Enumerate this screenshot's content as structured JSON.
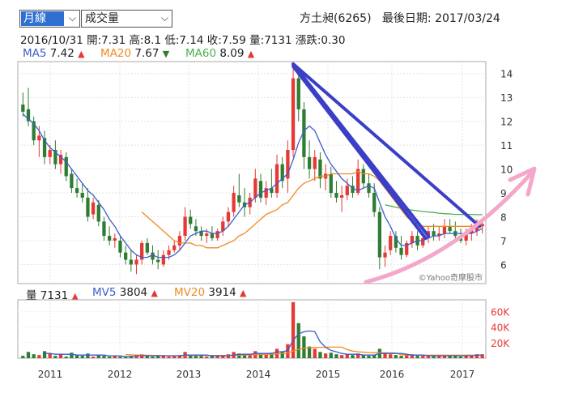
{
  "controls": {
    "period": "月線",
    "indicator": "成交量"
  },
  "stock": {
    "title": "方土昶(6265)",
    "last_date_label": "最後日期: 2017/03/24"
  },
  "info": {
    "date": "2016/10/31",
    "open": "開:7.31",
    "high": "高:8.1",
    "low": "低:7.14",
    "close": "收:7.59",
    "volume": "量:7131",
    "change": "漲跌:0.30"
  },
  "ma": {
    "ma5": {
      "label": "MA5",
      "value": "7.42",
      "dir": "▲"
    },
    "ma20": {
      "label": "MA20",
      "value": "7.67",
      "dir": "▼"
    },
    "ma60": {
      "label": "MA60",
      "value": "8.09",
      "dir": "▲"
    }
  },
  "vol_legend": {
    "vol": {
      "label": "量",
      "value": "7131",
      "dir": "▲"
    },
    "mv5": {
      "label": "MV5",
      "value": "3804",
      "dir": "▲"
    },
    "mv20": {
      "label": "MV20",
      "value": "3914",
      "dir": "▲"
    }
  },
  "watermark": "©Yahoo奇摩股市",
  "colors": {
    "up": "#e53935",
    "down": "#2e7d32",
    "ma5": "#3a5fcd",
    "ma20": "#ef8a23",
    "ma60": "#4caf50",
    "trend": "#3b3fc8",
    "arrow": "#f4a7c8"
  },
  "chart_data": {
    "type": "candlestick",
    "price_ticks": [
      6,
      7,
      8,
      9,
      10,
      11,
      12,
      13,
      14
    ],
    "ylim": [
      5.2,
      14.5
    ],
    "x_labels": [
      "2011",
      "2012",
      "2013",
      "2014",
      "2015",
      "2016",
      "2017"
    ],
    "vol_ticks": [
      "20K",
      "40K",
      "60K"
    ],
    "vol_ylim": [
      0,
      75
    ],
    "candles": [
      [
        12.7,
        13.2,
        12.2,
        12.4
      ],
      [
        12.5,
        13.4,
        11.8,
        12.0
      ],
      [
        12.0,
        12.2,
        11.0,
        11.2
      ],
      [
        11.2,
        11.8,
        10.5,
        11.4
      ],
      [
        11.3,
        11.6,
        10.2,
        10.5
      ],
      [
        10.5,
        11.0,
        10.2,
        10.8
      ],
      [
        10.8,
        11.2,
        10.0,
        10.2
      ],
      [
        10.2,
        10.8,
        9.8,
        10.6
      ],
      [
        10.5,
        10.7,
        9.5,
        9.7
      ],
      [
        9.8,
        10.0,
        9.0,
        9.2
      ],
      [
        9.2,
        9.6,
        8.8,
        9.0
      ],
      [
        9.0,
        9.4,
        8.6,
        8.8
      ],
      [
        8.8,
        9.2,
        7.8,
        8.0
      ],
      [
        8.1,
        8.8,
        7.9,
        8.6
      ],
      [
        8.5,
        8.7,
        7.6,
        7.8
      ],
      [
        7.8,
        8.0,
        7.0,
        7.2
      ],
      [
        7.2,
        7.6,
        6.8,
        7.0
      ],
      [
        7.0,
        7.3,
        6.7,
        7.1
      ],
      [
        7.0,
        7.2,
        6.3,
        6.5
      ],
      [
        6.5,
        6.8,
        6.0,
        6.2
      ],
      [
        6.2,
        6.6,
        5.7,
        6.0
      ],
      [
        6.0,
        6.4,
        5.6,
        6.2
      ],
      [
        6.2,
        7.0,
        6.0,
        6.9
      ],
      [
        6.9,
        7.1,
        6.4,
        6.5
      ],
      [
        6.5,
        6.8,
        6.0,
        6.2
      ],
      [
        6.2,
        6.6,
        5.8,
        6.1
      ],
      [
        6.0,
        6.6,
        5.9,
        6.4
      ],
      [
        6.4,
        6.8,
        6.2,
        6.6
      ],
      [
        6.6,
        7.0,
        6.5,
        6.8
      ],
      [
        6.8,
        7.4,
        6.6,
        7.2
      ],
      [
        7.2,
        8.4,
        7.0,
        8.0
      ],
      [
        8.0,
        8.3,
        7.5,
        7.7
      ],
      [
        7.6,
        7.9,
        7.2,
        7.4
      ],
      [
        7.4,
        7.6,
        7.0,
        7.2
      ],
      [
        7.2,
        7.5,
        6.9,
        7.3
      ],
      [
        7.3,
        7.6,
        7.0,
        7.1
      ],
      [
        7.1,
        7.5,
        7.0,
        7.4
      ],
      [
        7.4,
        8.0,
        7.2,
        7.8
      ],
      [
        7.8,
        8.4,
        7.6,
        8.2
      ],
      [
        8.2,
        9.3,
        8.0,
        9.0
      ],
      [
        8.9,
        9.8,
        8.4,
        8.6
      ],
      [
        8.6,
        9.2,
        8.0,
        8.4
      ],
      [
        8.4,
        9.0,
        8.1,
        8.8
      ],
      [
        8.8,
        10.0,
        8.6,
        9.6
      ],
      [
        9.5,
        9.8,
        8.6,
        8.8
      ],
      [
        8.8,
        9.5,
        8.5,
        9.2
      ],
      [
        9.2,
        10.0,
        8.8,
        9.0
      ],
      [
        9.0,
        10.6,
        8.8,
        10.2
      ],
      [
        10.2,
        10.5,
        9.2,
        9.5
      ],
      [
        9.6,
        11.2,
        9.0,
        10.8
      ],
      [
        10.8,
        14.3,
        10.5,
        13.8
      ],
      [
        13.8,
        14.0,
        12.0,
        12.5
      ],
      [
        12.5,
        12.8,
        10.0,
        10.5
      ],
      [
        10.5,
        11.2,
        9.6,
        10.0
      ],
      [
        10.0,
        10.8,
        9.5,
        10.5
      ],
      [
        10.4,
        10.7,
        9.2,
        9.6
      ],
      [
        9.6,
        10.2,
        9.1,
        9.8
      ],
      [
        9.8,
        10.1,
        8.8,
        9.0
      ],
      [
        9.0,
        9.5,
        8.6,
        8.8
      ],
      [
        8.8,
        9.3,
        8.2,
        8.9
      ],
      [
        8.9,
        9.6,
        8.7,
        9.3
      ],
      [
        9.3,
        9.7,
        8.8,
        9.0
      ],
      [
        9.0,
        10.4,
        8.9,
        10.0
      ],
      [
        10.0,
        10.2,
        9.2,
        9.4
      ],
      [
        9.4,
        9.8,
        8.8,
        9.0
      ],
      [
        9.0,
        9.4,
        8.0,
        8.2
      ],
      [
        8.2,
        8.4,
        5.8,
        6.3
      ],
      [
        6.3,
        6.8,
        5.9,
        6.5
      ],
      [
        6.6,
        7.4,
        6.4,
        7.2
      ],
      [
        7.2,
        7.4,
        6.5,
        6.7
      ],
      [
        6.7,
        7.2,
        6.2,
        6.4
      ],
      [
        6.4,
        7.0,
        6.3,
        6.9
      ],
      [
        6.9,
        7.4,
        6.7,
        7.2
      ],
      [
        7.2,
        7.4,
        6.6,
        6.8
      ],
      [
        6.8,
        7.3,
        6.7,
        7.1
      ],
      [
        7.1,
        7.6,
        6.9,
        7.4
      ],
      [
        7.4,
        7.7,
        7.0,
        7.2
      ],
      [
        7.2,
        7.6,
        7.0,
        7.3
      ],
      [
        7.3,
        7.9,
        7.1,
        7.6
      ],
      [
        7.6,
        7.9,
        7.3,
        7.4
      ],
      [
        7.4,
        7.8,
        7.1,
        7.2
      ],
      [
        7.2,
        7.5,
        6.9,
        7.0
      ],
      [
        7.0,
        7.5,
        6.8,
        7.3
      ],
      [
        7.3,
        7.7,
        7.0,
        7.5
      ],
      [
        7.4,
        7.9,
        7.2,
        7.6
      ],
      [
        7.6,
        7.9,
        7.3,
        7.7
      ]
    ],
    "ma5": [
      12.3,
      12.1,
      11.9,
      11.6,
      11.2,
      10.9,
      10.7,
      10.5,
      10.3,
      10.0,
      9.7,
      9.4,
      9.1,
      8.9,
      8.6,
      8.3,
      7.9,
      7.6,
      7.2,
      6.9,
      6.6,
      6.4,
      6.3,
      6.3,
      6.4,
      6.3,
      6.3,
      6.3,
      6.4,
      6.6,
      6.9,
      7.2,
      7.3,
      7.4,
      7.4,
      7.3,
      7.3,
      7.4,
      7.6,
      7.9,
      8.2,
      8.5,
      8.6,
      8.8,
      9.0,
      9.1,
      9.2,
      9.4,
      9.6,
      9.8,
      10.4,
      11.1,
      11.6,
      11.8,
      11.6,
      11.1,
      10.6,
      10.2,
      9.9,
      9.6,
      9.4,
      9.2,
      9.1,
      9.2,
      9.3,
      9.2,
      8.6,
      8.0,
      7.6,
      7.1,
      6.8,
      6.8,
      6.9,
      7.0,
      7.0,
      7.1,
      7.2,
      7.2,
      7.3,
      7.3,
      7.3,
      7.3,
      7.3,
      7.3,
      7.4,
      7.5
    ],
    "ma20": [
      null,
      null,
      null,
      null,
      null,
      null,
      null,
      null,
      null,
      null,
      null,
      null,
      null,
      null,
      null,
      null,
      null,
      null,
      null,
      null,
      null,
      null,
      8.2,
      8.0,
      7.8,
      7.6,
      7.4,
      7.2,
      7.0,
      6.9,
      6.9,
      6.9,
      6.8,
      6.8,
      6.7,
      6.7,
      6.7,
      6.8,
      6.9,
      7.0,
      7.2,
      7.3,
      7.5,
      7.7,
      7.9,
      8.1,
      8.2,
      8.3,
      8.5,
      8.6,
      8.9,
      9.2,
      9.4,
      9.5,
      9.6,
      9.7,
      9.7,
      9.8,
      9.8,
      9.8,
      9.8,
      9.8,
      9.9,
      9.8,
      9.8,
      9.7,
      9.5,
      9.2,
      8.9,
      8.6,
      8.3,
      8.0,
      7.8,
      7.7,
      7.6,
      7.6,
      7.6,
      7.6,
      7.6,
      7.6,
      7.6,
      7.6,
      7.6,
      7.6,
      7.7,
      7.7
    ],
    "ma60": [
      null,
      null,
      null,
      null,
      null,
      null,
      null,
      null,
      null,
      null,
      null,
      null,
      null,
      null,
      null,
      null,
      null,
      null,
      null,
      null,
      null,
      null,
      null,
      null,
      null,
      null,
      null,
      null,
      null,
      null,
      null,
      null,
      null,
      null,
      null,
      null,
      null,
      null,
      null,
      null,
      null,
      null,
      null,
      null,
      null,
      null,
      null,
      null,
      null,
      null,
      null,
      null,
      null,
      null,
      null,
      null,
      null,
      null,
      null,
      null,
      null,
      null,
      null,
      null,
      null,
      null,
      null,
      8.5,
      8.45,
      8.4,
      8.35,
      8.3,
      8.28,
      8.25,
      8.22,
      8.2,
      8.18,
      8.15,
      8.13,
      8.12,
      8.1,
      8.1,
      8.1,
      8.1,
      8.09,
      8.09
    ],
    "volume": [
      3,
      8,
      5,
      4,
      9,
      6,
      3,
      5,
      2,
      7,
      4,
      3,
      6,
      2,
      4,
      3,
      2,
      3,
      2,
      2,
      3,
      4,
      5,
      3,
      2,
      4,
      3,
      2,
      3,
      4,
      8,
      4,
      3,
      3,
      2,
      3,
      3,
      4,
      5,
      8,
      6,
      4,
      5,
      9,
      6,
      5,
      7,
      12,
      9,
      18,
      72,
      45,
      28,
      15,
      12,
      8,
      6,
      7,
      5,
      4,
      5,
      4,
      6,
      4,
      3,
      4,
      12,
      7,
      5,
      4,
      3,
      4,
      5,
      3,
      3,
      4,
      3,
      3,
      4,
      3,
      3,
      2,
      3,
      4,
      5,
      5
    ],
    "mv5": [
      null,
      null,
      null,
      null,
      6,
      6,
      5,
      5,
      5,
      5,
      4,
      4,
      4,
      4,
      4,
      4,
      3,
      3,
      3,
      2,
      2,
      3,
      3,
      3,
      3,
      3,
      3,
      3,
      3,
      3,
      4,
      4,
      4,
      4,
      4,
      3,
      3,
      3,
      3,
      4,
      5,
      5,
      5,
      6,
      6,
      6,
      6,
      8,
      8,
      10,
      23,
      31,
      34,
      35,
      34,
      21,
      14,
      10,
      8,
      6,
      5,
      5,
      5,
      4,
      4,
      4,
      6,
      6,
      6,
      6,
      6,
      5,
      4,
      4,
      4,
      3,
      3,
      3,
      3,
      3,
      3,
      3,
      3,
      3,
      4,
      4
    ],
    "mv20": [
      null,
      null,
      null,
      null,
      null,
      null,
      null,
      null,
      null,
      null,
      null,
      null,
      null,
      null,
      null,
      null,
      null,
      null,
      null,
      4.5,
      4.3,
      4.1,
      4.0,
      3.8,
      3.6,
      3.5,
      3.3,
      3.2,
      3.1,
      3.1,
      3.3,
      3.4,
      3.4,
      3.4,
      3.4,
      3.4,
      3.4,
      3.5,
      3.6,
      3.8,
      4.0,
      4.1,
      4.2,
      4.5,
      4.7,
      4.8,
      5.0,
      5.4,
      5.8,
      6.5,
      9.3,
      11.3,
      12.6,
      13.3,
      13.8,
      14.0,
      14.1,
      14.2,
      14.2,
      14.2,
      11.0,
      9.1,
      8.2,
      7.6,
      7.2,
      7.0,
      7.0,
      6.9,
      6.8,
      6.6,
      4.4,
      4.1,
      4.0,
      3.9,
      3.9,
      3.9,
      3.9,
      3.9,
      3.9,
      3.9,
      3.9,
      3.9,
      3.9,
      3.9,
      3.9,
      3.9
    ],
    "trend_lines": [
      {
        "from": [
          50,
          14.4
        ],
        "to": [
          84.5,
          7.6
        ]
      },
      {
        "from": [
          50,
          14.4
        ],
        "to": [
          75,
          7.2
        ]
      },
      {
        "from": [
          50,
          14.3
        ],
        "to": [
          74.5,
          7.1
        ]
      }
    ]
  }
}
